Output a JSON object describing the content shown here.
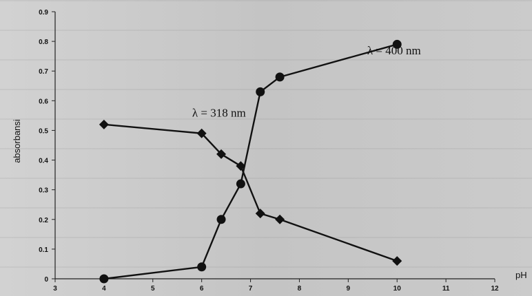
{
  "chart_data": {
    "type": "line",
    "title": "",
    "xlabel": "pH",
    "ylabel": "absorbansi",
    "xlim": [
      3,
      12
    ],
    "ylim": [
      0,
      0.9
    ],
    "x_ticks": [
      "3",
      "4",
      "5",
      "6",
      "7",
      "8",
      "9",
      "10",
      "11",
      "12"
    ],
    "y_ticks": [
      "0",
      "0.1",
      "0.2",
      "0.3",
      "0.4",
      "0.5",
      "0.6",
      "0.7",
      "0.8",
      "0.9"
    ],
    "grid": false,
    "legend": "none",
    "series": [
      {
        "marker": "diamond",
        "color": "#111111",
        "x": [
          4,
          6,
          6.4,
          6.8,
          7.2,
          7.6,
          10
        ],
        "y": [
          0.52,
          0.49,
          0.42,
          0.38,
          0.22,
          0.2,
          0.06
        ]
      },
      {
        "marker": "circle",
        "color": "#111111",
        "x": [
          4,
          6,
          6.4,
          6.8,
          7.2,
          7.6,
          10
        ],
        "y": [
          0.0,
          0.04,
          0.2,
          0.32,
          0.63,
          0.68,
          0.79
        ]
      }
    ],
    "annotations": [
      {
        "text": "λ = 318 nm",
        "x": 6.3,
        "y": 0.56
      },
      {
        "text": "λ = 400 nm",
        "x": 9.6,
        "y": 0.77
      }
    ]
  }
}
